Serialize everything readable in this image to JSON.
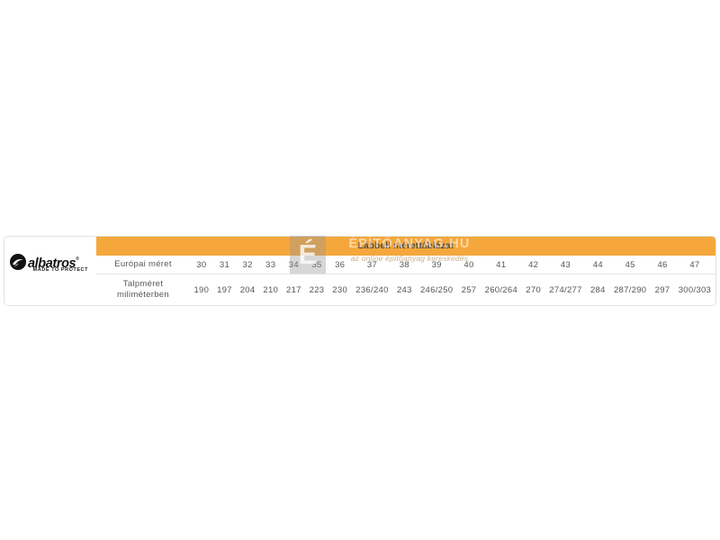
{
  "brand": {
    "name": "albatros",
    "registered": "®",
    "tagline": "MADE TO PROTECT"
  },
  "header": {
    "title": "Lábbeli mérettáblázat",
    "accent_color": "#F5A73C"
  },
  "watermark": {
    "logo_letter": "É",
    "site": "ÉPÍTŐANYAG.HU",
    "slogan": "az online építőanyag kereskedés"
  },
  "chart_data": {
    "type": "table",
    "title": "Lábbeli mérettáblázat",
    "rows": [
      {
        "label_lines": [
          "Európai méret"
        ],
        "values": [
          "30",
          "31",
          "32",
          "33",
          "34",
          "35",
          "36",
          "37",
          "38",
          "39",
          "40",
          "41",
          "42",
          "43",
          "44",
          "45",
          "46",
          "47"
        ]
      },
      {
        "label_lines": [
          "Talpméret",
          "miliméterben"
        ],
        "values": [
          "190",
          "197",
          "204",
          "210",
          "217",
          "223",
          "230",
          "236/240",
          "243",
          "246/250",
          "257",
          "260/264",
          "270",
          "274/277",
          "284",
          "287/290",
          "297",
          "300/303"
        ]
      }
    ],
    "layout": {
      "header_background": "#F5A73C",
      "text_color": "#54555b",
      "row_separator": "#e5e5e5"
    }
  }
}
